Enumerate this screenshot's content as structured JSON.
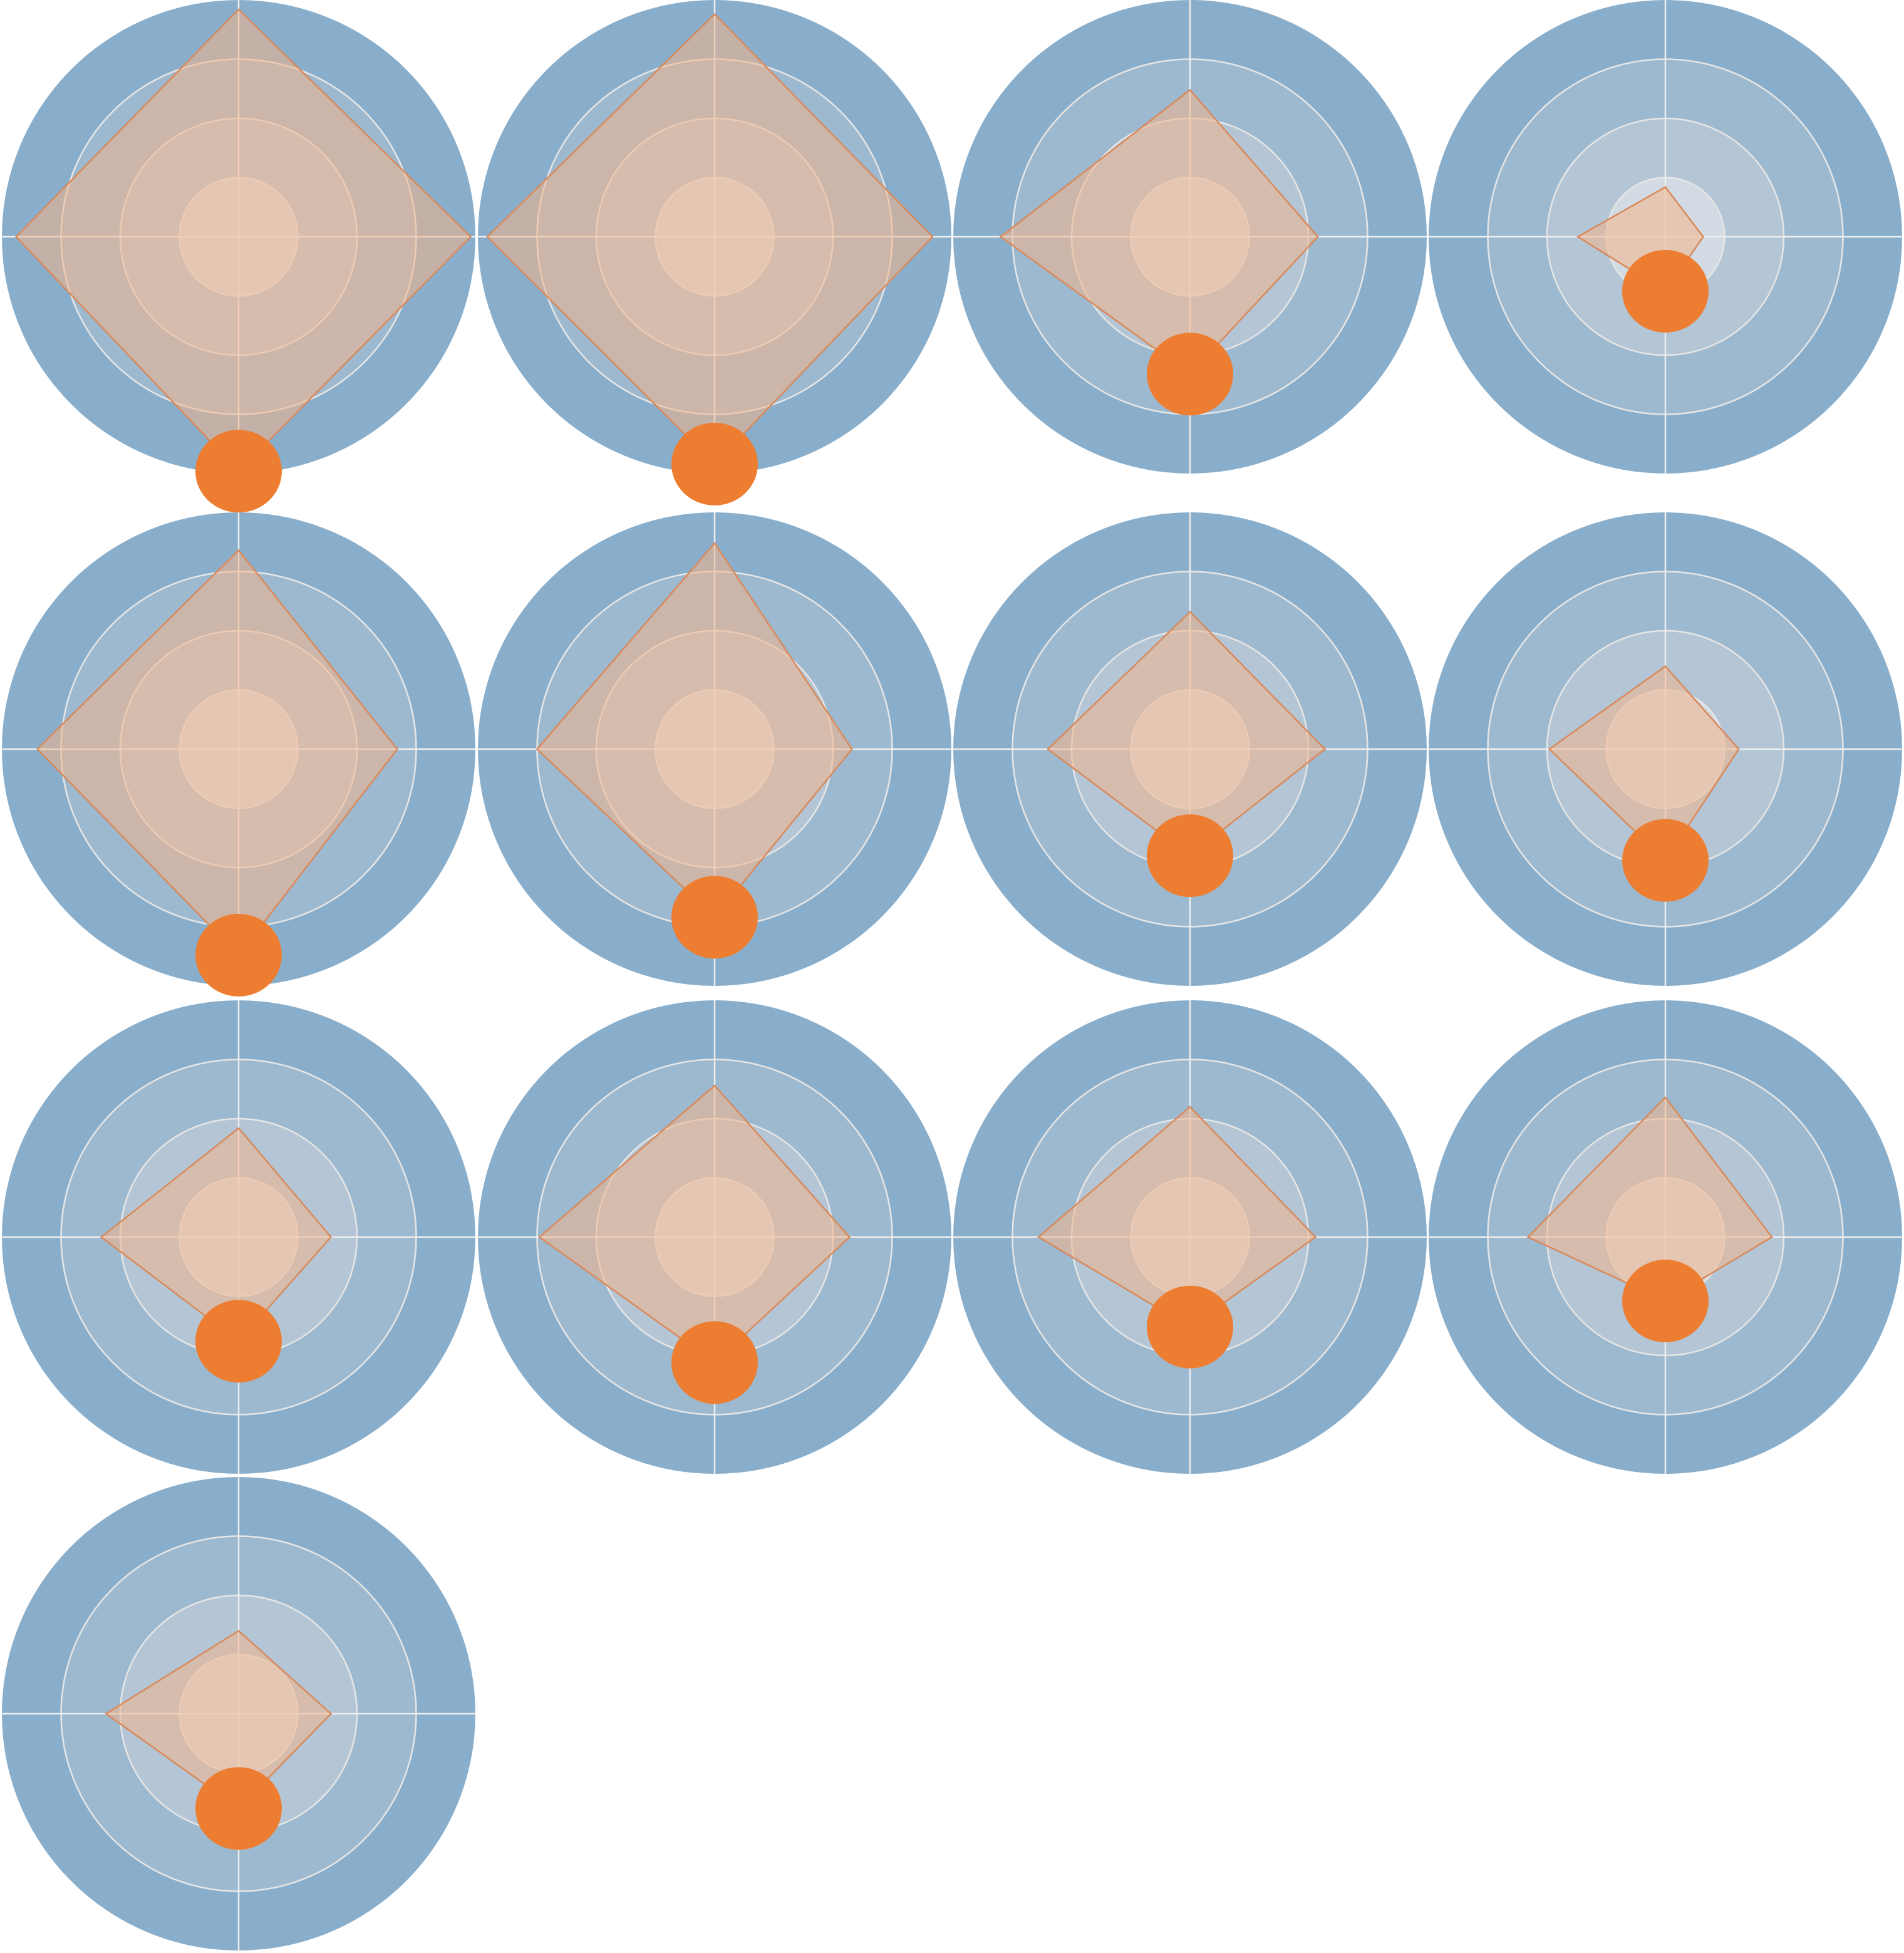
{
  "chart_data": [
    {
      "type": "radar",
      "values": [
        0.96,
        0.98,
        0.99,
        0.94
      ],
      "rlim": [
        0,
        1
      ],
      "rticks": [
        0.25,
        0.5,
        0.75,
        1
      ]
    },
    {
      "type": "radar",
      "values": [
        0.94,
        0.92,
        0.96,
        0.96
      ],
      "rlim": [
        0,
        1
      ],
      "rticks": [
        0.25,
        0.5,
        0.75,
        1
      ]
    },
    {
      "type": "radar",
      "values": [
        0.62,
        0.54,
        0.58,
        0.8
      ],
      "rlim": [
        0,
        1
      ],
      "rticks": [
        0.25,
        0.5,
        0.75,
        1
      ]
    },
    {
      "type": "radar",
      "values": [
        0.21,
        0.16,
        0.23,
        0.37
      ],
      "rlim": [
        0,
        1
      ],
      "rticks": [
        0.25,
        0.5,
        0.75,
        1
      ]
    },
    {
      "type": "radar",
      "values": [
        0.84,
        0.67,
        0.87,
        0.85
      ],
      "rlim": [
        0,
        1
      ],
      "rticks": [
        0.25,
        0.5,
        0.75,
        1
      ]
    },
    {
      "type": "radar",
      "values": [
        0.87,
        0.58,
        0.71,
        0.75
      ],
      "rlim": [
        0,
        1
      ],
      "rticks": [
        0.25,
        0.5,
        0.75,
        1
      ]
    },
    {
      "type": "radar",
      "values": [
        0.58,
        0.57,
        0.45,
        0.6
      ],
      "rlim": [
        0,
        1
      ],
      "rticks": [
        0.25,
        0.5,
        0.75,
        1
      ]
    },
    {
      "type": "radar",
      "values": [
        0.35,
        0.31,
        0.47,
        0.49
      ],
      "rlim": [
        0,
        1
      ],
      "rticks": [
        0.25,
        0.5,
        0.75,
        1
      ]
    },
    {
      "type": "radar",
      "values": [
        0.46,
        0.39,
        0.44,
        0.58
      ],
      "rlim": [
        0,
        1
      ],
      "rticks": [
        0.25,
        0.5,
        0.75,
        1
      ]
    },
    {
      "type": "radar",
      "values": [
        0.64,
        0.57,
        0.53,
        0.74
      ],
      "rlim": [
        0,
        1
      ],
      "rticks": [
        0.25,
        0.5,
        0.75,
        1
      ]
    },
    {
      "type": "radar",
      "values": [
        0.55,
        0.53,
        0.38,
        0.64
      ],
      "rlim": [
        0,
        1
      ],
      "rticks": [
        0.25,
        0.5,
        0.75,
        1
      ]
    },
    {
      "type": "radar",
      "values": [
        0.59,
        0.45,
        0.27,
        0.58
      ],
      "rlim": [
        0,
        1
      ],
      "rticks": [
        0.25,
        0.5,
        0.75,
        1
      ]
    },
    {
      "type": "radar",
      "values": [
        0.35,
        0.39,
        0.4,
        0.56
      ],
      "rlim": [
        0,
        1
      ],
      "rticks": [
        0.25,
        0.5,
        0.75,
        1
      ]
    }
  ]
}
